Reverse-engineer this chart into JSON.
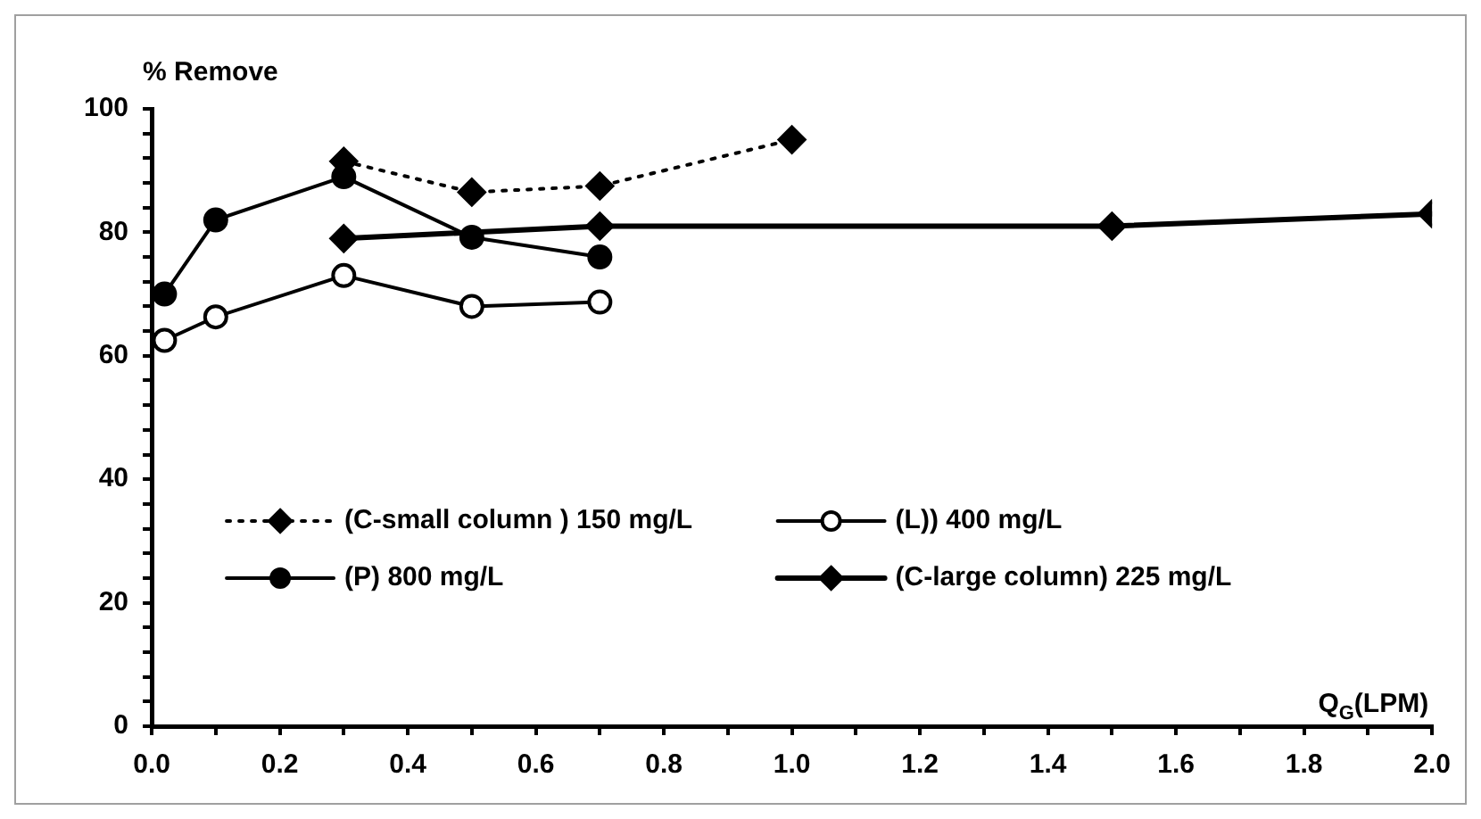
{
  "chart_data": {
    "type": "line",
    "xlabel": "Q$_{G}$(LPM)",
    "ylabel": "% Remove",
    "xlim": [
      0,
      2
    ],
    "ylim": [
      0,
      100
    ],
    "xticks": [
      {
        "value": 0,
        "label": "0.0"
      },
      {
        "value": 0.1,
        "label": null
      },
      {
        "value": 0.2,
        "label": "0.2"
      },
      {
        "value": 0.3,
        "label": null
      },
      {
        "value": 0.4,
        "label": "0.4"
      },
      {
        "value": 0.5,
        "label": null
      },
      {
        "value": 0.6,
        "label": "0.6"
      },
      {
        "value": 0.7,
        "label": null
      },
      {
        "value": 0.8,
        "label": "0.8"
      },
      {
        "value": 0.9,
        "label": null
      },
      {
        "value": 1,
        "label": "1.0"
      },
      {
        "value": 1.1,
        "label": null
      },
      {
        "value": 1.2,
        "label": "1.2"
      },
      {
        "value": 1.3,
        "label": null
      },
      {
        "value": 1.4,
        "label": "1.4"
      },
      {
        "value": 1.5,
        "label": null
      },
      {
        "value": 1.6,
        "label": "1.6"
      },
      {
        "value": 1.7,
        "label": null
      },
      {
        "value": 1.8,
        "label": "1.8"
      },
      {
        "value": 1.9,
        "label": null
      },
      {
        "value": 2,
        "label": "2.0"
      }
    ],
    "yticks": [
      0,
      {
        "value": 4,
        "label": null
      },
      {
        "value": 8,
        "label": null
      },
      {
        "value": 12,
        "label": null
      },
      {
        "value": 16,
        "label": null
      },
      20,
      {
        "value": 24,
        "label": null
      },
      {
        "value": 28,
        "label": null
      },
      {
        "value": 32,
        "label": null
      },
      {
        "value": 36,
        "label": null
      },
      40,
      {
        "value": 44,
        "label": null
      },
      {
        "value": 48,
        "label": null
      },
      {
        "value": 52,
        "label": null
      },
      {
        "value": 56,
        "label": null
      },
      60,
      {
        "value": 64,
        "label": null
      },
      {
        "value": 68,
        "label": null
      },
      {
        "value": 72,
        "label": null
      },
      {
        "value": 76,
        "label": null
      },
      80,
      {
        "value": 84,
        "label": null
      },
      {
        "value": 88,
        "label": null
      },
      {
        "value": 92,
        "label": null
      },
      {
        "value": 96,
        "label": null
      },
      100
    ],
    "grid": false,
    "legend": "bottom",
    "series": [
      {
        "name": "(C-small column ) 150 mg/L",
        "color": "#000000",
        "marker": "diamond",
        "line_style": "dotted",
        "x": [
          0.3,
          0.5,
          0.7,
          1.0
        ],
        "values": [
          91.5,
          86.5,
          87.5,
          95
        ]
      },
      {
        "name": "(L)) 400 mg/L",
        "color": "#000000",
        "marker": "circle",
        "line_style": "solid",
        "x": [
          0.02,
          0.1,
          0.3,
          0.5,
          0.7
        ],
        "values": [
          62.5,
          66.3,
          73,
          68,
          68.7
        ]
      },
      {
        "name": "(P) 800 mg/L",
        "color": "#000000",
        "marker": "circle",
        "line_style": "solid",
        "x": [
          0.02,
          0.1,
          0.3,
          0.5,
          0.7
        ],
        "values": [
          70,
          82,
          89,
          79.2,
          76
        ]
      },
      {
        "name": "(C-large column) 225 mg/L",
        "color": "#000000",
        "marker": "diamond",
        "line_style": "solid",
        "x": [
          0.3,
          0.7,
          1.5,
          2.0
        ],
        "values": [
          79,
          81,
          81,
          83
        ]
      }
    ]
  }
}
